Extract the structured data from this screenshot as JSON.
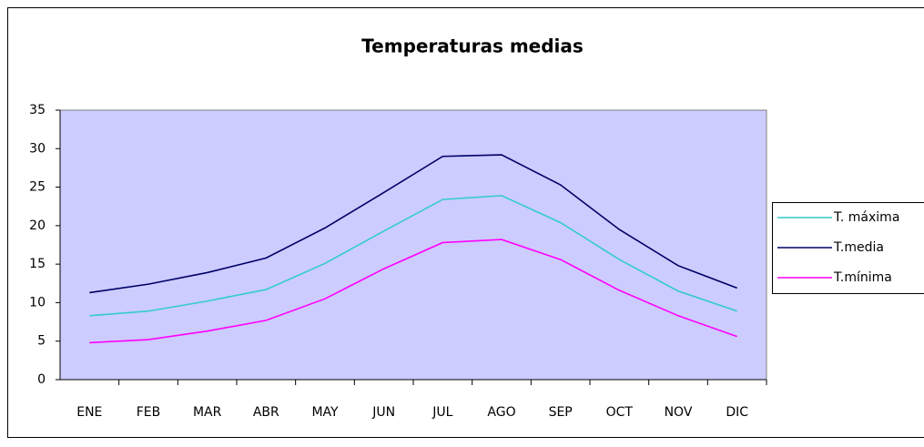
{
  "chart_data": {
    "type": "line",
    "title": "Temperaturas medias",
    "categories": [
      "ENE",
      "FEB",
      "MAR",
      "ABR",
      "MAY",
      "JUN",
      "JUL",
      "AGO",
      "SEP",
      "OCT",
      "NOV",
      "DIC"
    ],
    "series": [
      {
        "name": "T. máxima",
        "color": "#33cccc",
        "values": [
          8.3,
          8.9,
          10.2,
          11.7,
          15.1,
          19.3,
          23.4,
          23.9,
          20.4,
          15.6,
          11.5,
          8.9
        ]
      },
      {
        "name": "T.media",
        "color": "#000066",
        "values": [
          11.3,
          12.4,
          13.9,
          15.8,
          19.7,
          24.3,
          29.0,
          29.2,
          25.3,
          19.5,
          14.8,
          11.9
        ]
      },
      {
        "name": "T.mínima",
        "color": "#ff00ff",
        "values": [
          4.8,
          5.2,
          6.3,
          7.7,
          10.5,
          14.4,
          17.8,
          18.2,
          15.6,
          11.6,
          8.3,
          5.6
        ]
      }
    ],
    "ylim": [
      0,
      35
    ],
    "yticks": [
      0,
      5,
      10,
      15,
      20,
      25,
      30,
      35
    ],
    "legend": "right",
    "plot_background": "#ccccff"
  }
}
